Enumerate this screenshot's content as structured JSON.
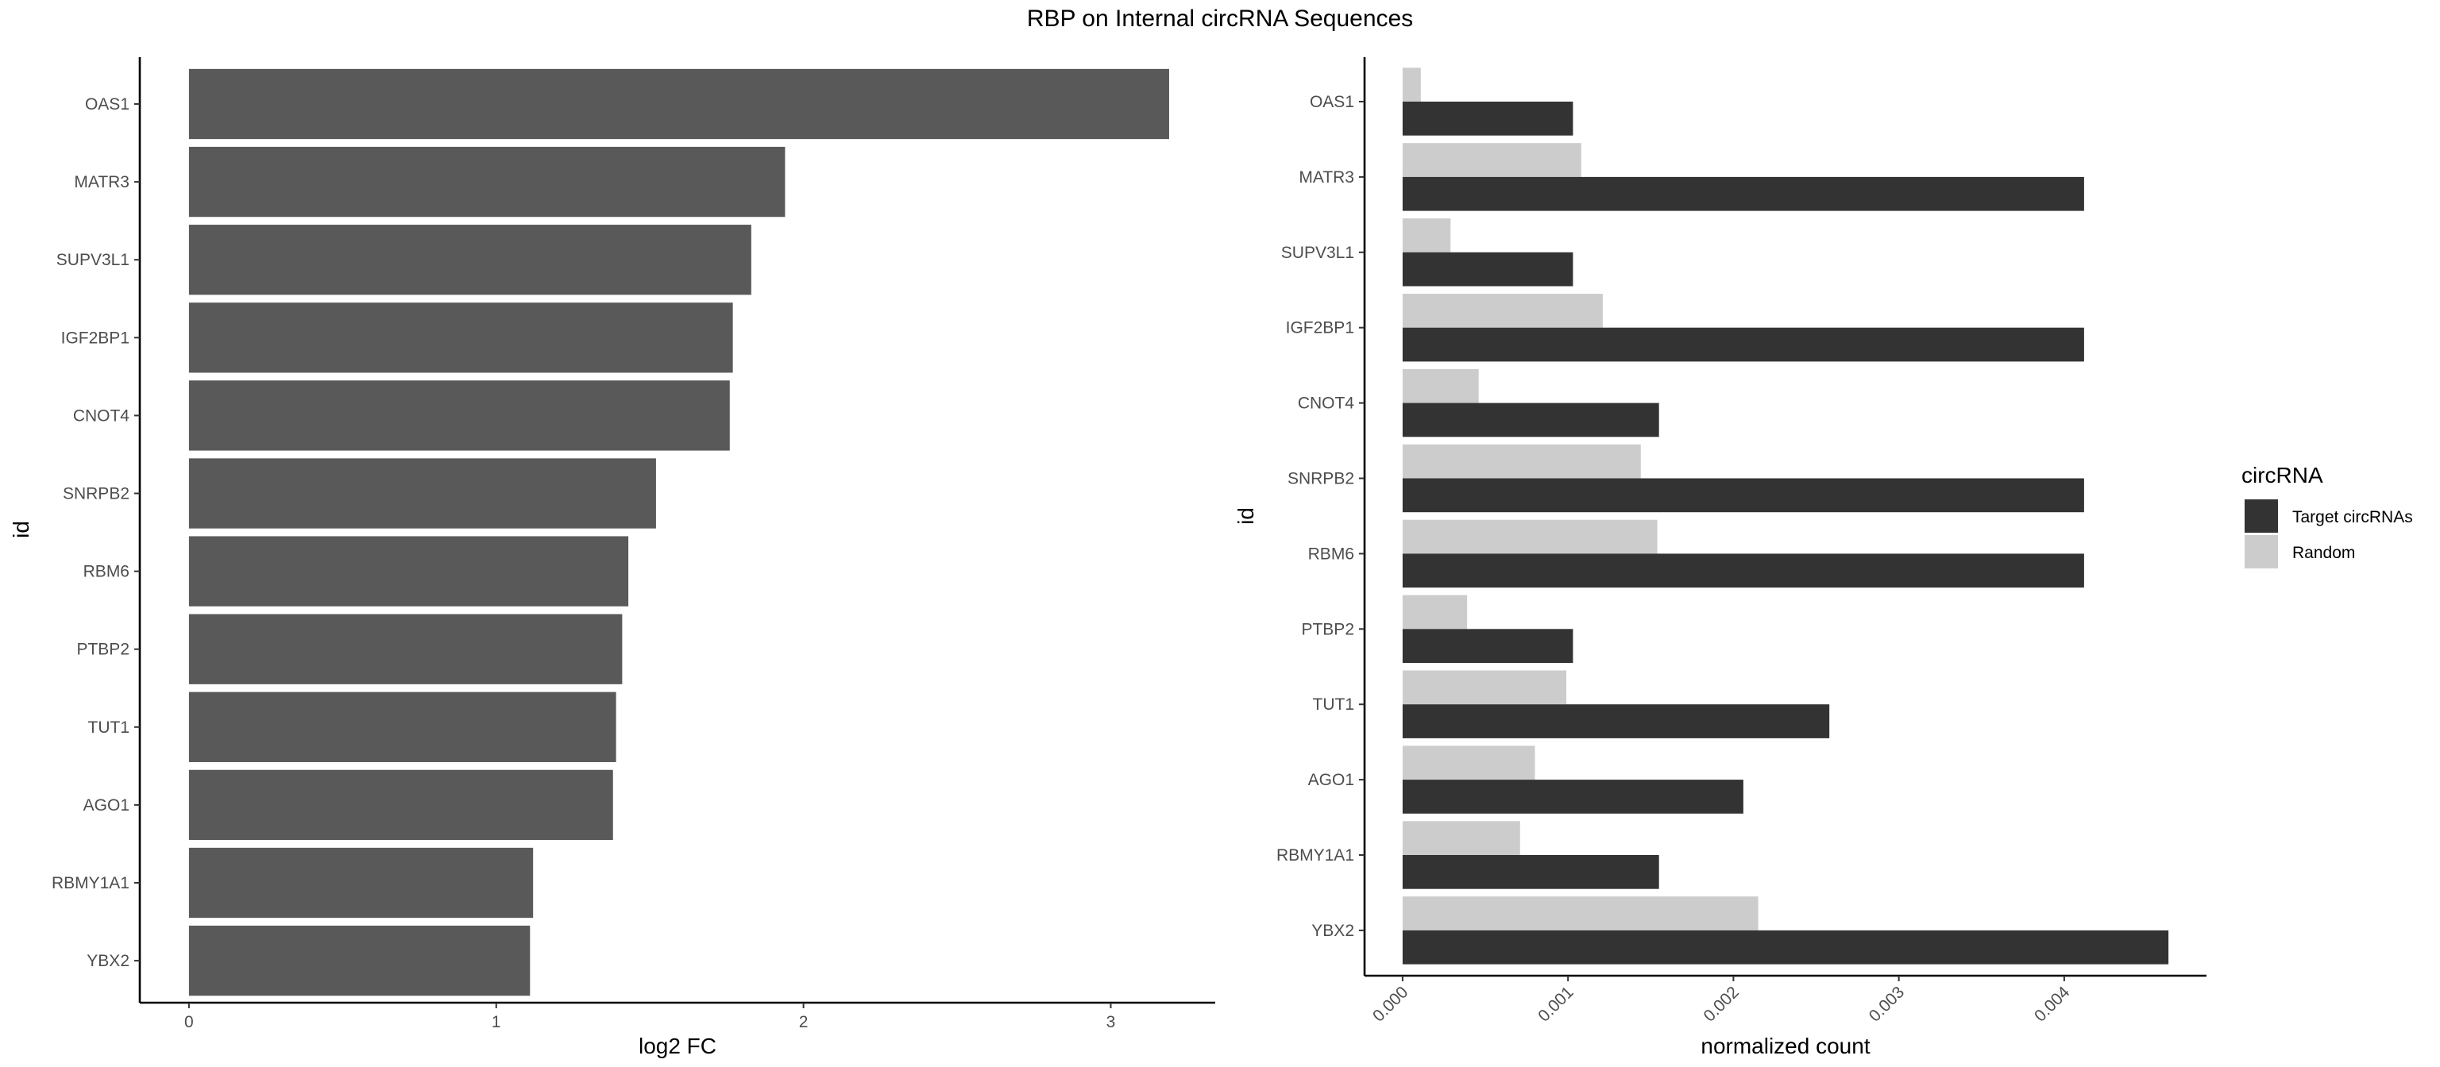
{
  "title": "RBP on Internal circRNA Sequences",
  "chart_data": [
    {
      "type": "bar",
      "orientation": "horizontal",
      "categories": [
        "OAS1",
        "MATR3",
        "SUPV3L1",
        "IGF2BP1",
        "CNOT4",
        "SNRPB2",
        "RBM6",
        "PTBP2",
        "TUT1",
        "AGO1",
        "RBMY1A1",
        "YBX2"
      ],
      "series": [
        {
          "values": [
            3.19,
            1.94,
            1.83,
            1.77,
            1.76,
            1.52,
            1.43,
            1.41,
            1.39,
            1.38,
            1.12,
            1.11
          ]
        }
      ],
      "xlabel": "log2 FC",
      "ylabel": "id",
      "xlim": [
        -0.16,
        3.34
      ],
      "xticks": [
        0,
        1,
        2,
        3
      ],
      "colors": [
        "#595959"
      ],
      "grid": false
    },
    {
      "type": "bar",
      "orientation": "horizontal",
      "categories": [
        "OAS1",
        "MATR3",
        "SUPV3L1",
        "IGF2BP1",
        "CNOT4",
        "SNRPB2",
        "RBM6",
        "PTBP2",
        "TUT1",
        "AGO1",
        "RBMY1A1",
        "YBX2"
      ],
      "series": [
        {
          "name": "Target circRNAs",
          "values": [
            0.00103,
            0.00412,
            0.00103,
            0.00412,
            0.00155,
            0.00412,
            0.00412,
            0.00103,
            0.00258,
            0.00206,
            0.00155,
            0.00463
          ]
        },
        {
          "name": "Random",
          "values": [
            0.00011,
            0.00108,
            0.00029,
            0.00121,
            0.00046,
            0.00144,
            0.00154,
            0.00039,
            0.00099,
            0.0008,
            0.00071,
            0.00215
          ]
        }
      ],
      "xlabel": "normalized count",
      "ylabel": "id",
      "xlim": [
        -0.00023,
        0.00486
      ],
      "xticks": [
        "0.000",
        "0.001",
        "0.002",
        "0.003",
        "0.004"
      ],
      "colors": [
        "#333333",
        "#cccccc"
      ],
      "legend": {
        "title": "circRNA",
        "position": "right"
      },
      "grid": false
    }
  ]
}
